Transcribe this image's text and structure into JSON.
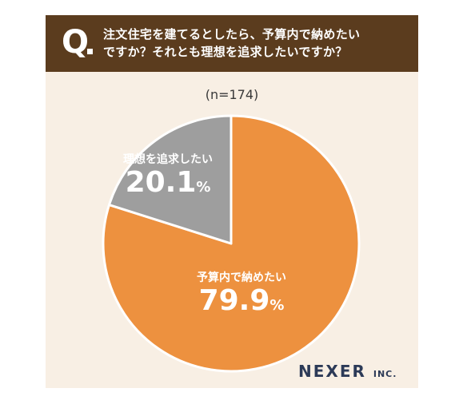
{
  "header": {
    "q_mark": "Q",
    "question_line1": "注文住宅を建てるとしたら、予算内で納めたい",
    "question_line2": "ですか？それとも理想を追求したいですか？"
  },
  "sample_size": "(n=174)",
  "slices": [
    {
      "label": "予算内で納めたい",
      "value_text": "79.9",
      "pct_sign": "%"
    },
    {
      "label": "理想を追求したい",
      "value_text": "20.1",
      "pct_sign": "%"
    }
  ],
  "brand": {
    "name": "NEXER",
    "suffix": "INC."
  },
  "chart_data": {
    "type": "pie",
    "categories": [
      "予算内で納めたい",
      "理想を追求したい"
    ],
    "values": [
      79.9,
      20.1
    ],
    "colors": [
      "#ed913f",
      "#9e9e9e"
    ],
    "start": "12 o'clock",
    "direction": "clockwise"
  }
}
